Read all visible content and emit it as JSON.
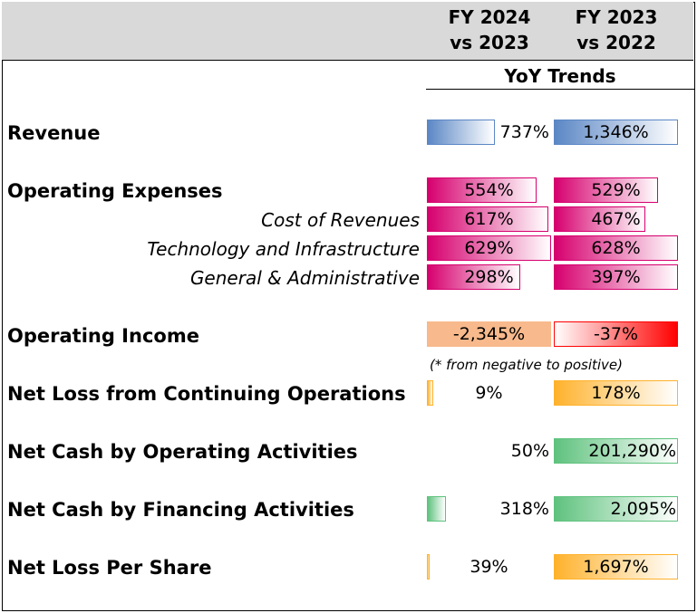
{
  "header": {
    "col1_line1": "FY 2024",
    "col1_line2": "vs 2023",
    "col2_line1": "FY 2023",
    "col2_line2": "vs 2022",
    "subheader": "YoY Trends"
  },
  "note": "(* from negative to positive)",
  "rows": [
    {
      "label": "Revenue",
      "v1": "737%",
      "v2": "1,346%",
      "fill1": 0.55,
      "fill2": 1.0,
      "color": "#5b87c5"
    },
    {
      "label": "Operating Expenses",
      "v1": "554%",
      "v2": "529%",
      "fill1": 0.88,
      "fill2": 0.84,
      "color": "#d6006e"
    },
    {
      "label": "Cost of Revenues",
      "v1": "617%",
      "v2": "467%",
      "fill1": 0.98,
      "fill2": 0.74,
      "color": "#d6006e"
    },
    {
      "label": "Technology and Infrastructure",
      "v1": "629%",
      "v2": "628%",
      "fill1": 1.0,
      "fill2": 1.0,
      "color": "#d6006e"
    },
    {
      "label": "General & Administrative",
      "v1": "298%",
      "v2": "397%",
      "fill1": 0.75,
      "fill2": 1.0,
      "color": "#d6006e"
    },
    {
      "label": "Operating Income",
      "v1": "-2,345%",
      "v2": "-37%",
      "fill1": 1.0,
      "fill2": 1.0,
      "color": "#f8b98c",
      "color2": "#ff0000"
    },
    {
      "label": "Net Loss from Continuing Operations",
      "v1": "9%",
      "v2": "178%",
      "fill1": 0.05,
      "fill2": 1.0,
      "color": "#ffb22c"
    },
    {
      "label": "Net Cash by Operating Activities",
      "v1": "50%",
      "v2": "201,290%",
      "fill1": 0.0,
      "fill2": 1.0,
      "color": "#5fc27e"
    },
    {
      "label": "Net Cash by Financing Activities",
      "v1": "318%",
      "v2": "2,095%",
      "fill1": 0.15,
      "fill2": 1.0,
      "color": "#5fc27e"
    },
    {
      "label": "Net Loss Per Share",
      "v1": "39%",
      "v2": "1,697%",
      "fill1": 0.02,
      "fill2": 1.0,
      "color": "#ffb22c"
    }
  ]
}
